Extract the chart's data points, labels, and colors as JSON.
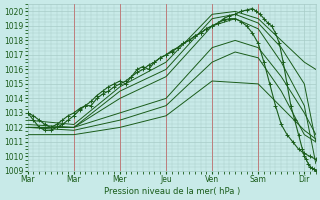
{
  "bg_color": "#c8eae8",
  "grid_color": "#a8ccc8",
  "line_color": "#1a5c1a",
  "marker_color": "#1a5c1a",
  "xlabel": "Pression niveau de la mer( hPa )",
  "xlabel_color": "#1a5c1a",
  "tick_color": "#1a5c1a",
  "ylim": [
    1009,
    1020.5
  ],
  "yticks": [
    1009,
    1010,
    1011,
    1012,
    1013,
    1014,
    1015,
    1016,
    1017,
    1018,
    1019,
    1020
  ],
  "xtick_labels": [
    "Mar",
    "Mar",
    "Mer",
    "Jeu",
    "Ven",
    "Sam",
    "Dir"
  ],
  "xtick_positions": [
    0,
    24,
    48,
    72,
    96,
    120,
    144
  ],
  "xlim": [
    0,
    150
  ],
  "vline_positions": [
    24,
    48,
    72,
    96,
    120
  ],
  "vline_color": "#c07070",
  "lines": [
    {
      "x": [
        0,
        3,
        6,
        9,
        12,
        15,
        18,
        21,
        24,
        27,
        30,
        33,
        36,
        39,
        42,
        45,
        48,
        51,
        54,
        57,
        60,
        63,
        66,
        69,
        72,
        75,
        78,
        81,
        84,
        87,
        90,
        93,
        96,
        99,
        102,
        105,
        108,
        111,
        114,
        117,
        119,
        121,
        123,
        125,
        127,
        129,
        131,
        133,
        135,
        137,
        139,
        141,
        143,
        144,
        145,
        146,
        147,
        148,
        149,
        150
      ],
      "y": [
        1013.0,
        1012.5,
        1012.0,
        1011.8,
        1011.8,
        1012.0,
        1012.2,
        1012.5,
        1012.8,
        1013.2,
        1013.5,
        1013.8,
        1014.2,
        1014.5,
        1014.8,
        1015.0,
        1015.2,
        1015.0,
        1015.5,
        1016.0,
        1016.2,
        1016.0,
        1016.5,
        1016.8,
        1017.0,
        1017.2,
        1017.5,
        1017.8,
        1018.0,
        1018.3,
        1018.5,
        1018.8,
        1019.0,
        1019.2,
        1019.5,
        1019.7,
        1019.8,
        1020.0,
        1020.1,
        1020.2,
        1020.0,
        1019.8,
        1019.5,
        1019.2,
        1019.0,
        1018.5,
        1017.8,
        1016.5,
        1015.0,
        1013.5,
        1012.5,
        1011.5,
        1010.5,
        1010.0,
        1009.8,
        1009.5,
        1009.3,
        1009.2,
        1009.1,
        1009.0
      ],
      "has_markers": true
    },
    {
      "x": [
        0,
        3,
        6,
        9,
        12,
        15,
        18,
        21,
        24,
        27,
        30,
        33,
        36,
        39,
        42,
        45,
        48,
        51,
        54,
        57,
        60,
        63,
        66,
        69,
        72,
        75,
        78,
        81,
        84,
        87,
        90,
        93,
        96,
        99,
        102,
        105,
        108,
        111,
        114,
        117,
        120,
        123,
        126,
        129,
        132,
        135,
        138,
        141,
        144,
        147,
        150
      ],
      "y": [
        1013.0,
        1012.8,
        1012.5,
        1012.2,
        1012.0,
        1012.2,
        1012.5,
        1012.8,
        1013.0,
        1013.3,
        1013.5,
        1013.5,
        1014.0,
        1014.3,
        1014.5,
        1014.8,
        1015.0,
        1015.2,
        1015.5,
        1015.8,
        1016.0,
        1016.3,
        1016.5,
        1016.8,
        1017.0,
        1017.3,
        1017.5,
        1017.8,
        1018.0,
        1018.3,
        1018.5,
        1018.8,
        1019.0,
        1019.2,
        1019.4,
        1019.5,
        1019.5,
        1019.3,
        1019.0,
        1018.5,
        1017.8,
        1016.5,
        1015.0,
        1013.5,
        1012.2,
        1011.5,
        1011.0,
        1010.5,
        1010.2,
        1010.0,
        1009.8
      ],
      "has_markers": true
    },
    {
      "x": [
        0,
        24,
        48,
        72,
        96,
        108,
        120,
        132,
        144,
        150
      ],
      "y": [
        1012.5,
        1012.2,
        1014.8,
        1016.5,
        1019.8,
        1020.0,
        1019.5,
        1018.0,
        1016.5,
        1016.0
      ],
      "has_markers": false
    },
    {
      "x": [
        0,
        24,
        48,
        72,
        96,
        108,
        120,
        132,
        144,
        150
      ],
      "y": [
        1012.2,
        1012.0,
        1014.5,
        1016.0,
        1019.5,
        1019.8,
        1019.2,
        1017.5,
        1015.0,
        1011.0
      ],
      "has_markers": false
    },
    {
      "x": [
        0,
        24,
        48,
        72,
        96,
        108,
        120,
        132,
        144,
        150
      ],
      "y": [
        1012.0,
        1012.0,
        1014.0,
        1015.5,
        1019.0,
        1019.5,
        1018.8,
        1016.5,
        1013.5,
        1009.5
      ],
      "has_markers": false
    },
    {
      "x": [
        0,
        24,
        48,
        72,
        96,
        108,
        120,
        132,
        144,
        150
      ],
      "y": [
        1012.0,
        1012.0,
        1013.0,
        1014.0,
        1017.5,
        1018.0,
        1017.5,
        1015.5,
        1013.0,
        1011.5
      ],
      "has_markers": false
    },
    {
      "x": [
        0,
        24,
        48,
        72,
        96,
        108,
        120,
        132,
        144,
        150
      ],
      "y": [
        1012.0,
        1011.8,
        1012.5,
        1013.5,
        1016.5,
        1017.2,
        1016.8,
        1014.5,
        1011.5,
        1011.0
      ],
      "has_markers": false
    },
    {
      "x": [
        0,
        24,
        48,
        72,
        96,
        120,
        144,
        150
      ],
      "y": [
        1011.5,
        1011.5,
        1012.0,
        1012.8,
        1015.2,
        1015.0,
        1011.8,
        1011.2
      ],
      "has_markers": false
    }
  ],
  "figsize": [
    3.2,
    2.0
  ],
  "dpi": 100
}
